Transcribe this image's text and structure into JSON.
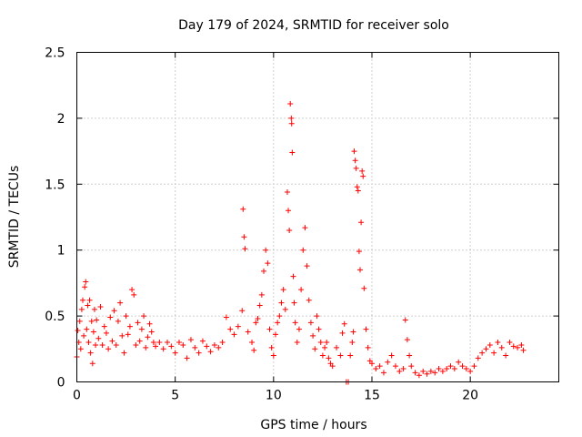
{
  "chart_data": {
    "type": "scatter",
    "title": "Day 179 of 2024, SRMTID for receiver solo",
    "xlabel": "GPS time / hours",
    "ylabel": "SRMTID / TECUs",
    "xlim": [
      0,
      24.5
    ],
    "ylim": [
      0,
      2.5
    ],
    "xticks": [
      0,
      5,
      10,
      15,
      20
    ],
    "xtick_labels": [
      "0",
      "5",
      "10",
      "15",
      "20"
    ],
    "yticks": [
      0,
      0.5,
      1,
      1.5,
      2,
      2.5
    ],
    "ytick_labels": [
      "0",
      "0.5",
      "1",
      "1.5",
      "2",
      "2.5"
    ],
    "grid": true,
    "marker": "+",
    "series": [
      {
        "name": "SRMTID",
        "color": "#ff0000",
        "points": [
          [
            0.0,
            0.19
          ],
          [
            0.05,
            0.39
          ],
          [
            0.1,
            0.3
          ],
          [
            0.15,
            0.46
          ],
          [
            0.2,
            0.25
          ],
          [
            0.25,
            0.55
          ],
          [
            0.3,
            0.62
          ],
          [
            0.35,
            0.35
          ],
          [
            0.4,
            0.72
          ],
          [
            0.45,
            0.76
          ],
          [
            0.5,
            0.4
          ],
          [
            0.55,
            0.58
          ],
          [
            0.6,
            0.3
          ],
          [
            0.65,
            0.62
          ],
          [
            0.7,
            0.22
          ],
          [
            0.75,
            0.46
          ],
          [
            0.8,
            0.14
          ],
          [
            0.85,
            0.38
          ],
          [
            0.9,
            0.55
          ],
          [
            0.95,
            0.28
          ],
          [
            1.0,
            0.47
          ],
          [
            1.1,
            0.33
          ],
          [
            1.2,
            0.57
          ],
          [
            1.3,
            0.28
          ],
          [
            1.4,
            0.42
          ],
          [
            1.5,
            0.37
          ],
          [
            1.6,
            0.25
          ],
          [
            1.7,
            0.49
          ],
          [
            1.8,
            0.31
          ],
          [
            1.9,
            0.54
          ],
          [
            2.0,
            0.28
          ],
          [
            2.1,
            0.46
          ],
          [
            2.2,
            0.6
          ],
          [
            2.3,
            0.35
          ],
          [
            2.4,
            0.22
          ],
          [
            2.5,
            0.5
          ],
          [
            2.6,
            0.36
          ],
          [
            2.7,
            0.42
          ],
          [
            2.8,
            0.7
          ],
          [
            2.9,
            0.66
          ],
          [
            3.0,
            0.28
          ],
          [
            3.1,
            0.45
          ],
          [
            3.2,
            0.31
          ],
          [
            3.3,
            0.4
          ],
          [
            3.4,
            0.5
          ],
          [
            3.5,
            0.26
          ],
          [
            3.6,
            0.34
          ],
          [
            3.7,
            0.44
          ],
          [
            3.8,
            0.38
          ],
          [
            3.9,
            0.3
          ],
          [
            4.0,
            0.27
          ],
          [
            4.2,
            0.3
          ],
          [
            4.4,
            0.25
          ],
          [
            4.6,
            0.3
          ],
          [
            4.8,
            0.27
          ],
          [
            5.0,
            0.22
          ],
          [
            5.2,
            0.3
          ],
          [
            5.4,
            0.28
          ],
          [
            5.6,
            0.18
          ],
          [
            5.8,
            0.32
          ],
          [
            6.0,
            0.26
          ],
          [
            6.2,
            0.22
          ],
          [
            6.4,
            0.31
          ],
          [
            6.6,
            0.27
          ],
          [
            6.8,
            0.23
          ],
          [
            7.0,
            0.28
          ],
          [
            7.2,
            0.26
          ],
          [
            7.4,
            0.3
          ],
          [
            7.6,
            0.49
          ],
          [
            7.8,
            0.4
          ],
          [
            8.0,
            0.36
          ],
          [
            8.2,
            0.42
          ],
          [
            8.4,
            0.54
          ],
          [
            8.45,
            1.31
          ],
          [
            8.5,
            1.1
          ],
          [
            8.55,
            1.01
          ],
          [
            8.7,
            0.38
          ],
          [
            8.9,
            0.3
          ],
          [
            9.0,
            0.24
          ],
          [
            9.1,
            0.45
          ],
          [
            9.2,
            0.48
          ],
          [
            9.3,
            0.58
          ],
          [
            9.4,
            0.66
          ],
          [
            9.5,
            0.84
          ],
          [
            9.6,
            1.0
          ],
          [
            9.7,
            0.9
          ],
          [
            9.8,
            0.4
          ],
          [
            9.9,
            0.26
          ],
          [
            10.0,
            0.2
          ],
          [
            10.1,
            0.36
          ],
          [
            10.2,
            0.45
          ],
          [
            10.3,
            0.5
          ],
          [
            10.4,
            0.6
          ],
          [
            10.5,
            0.7
          ],
          [
            10.6,
            0.55
          ],
          [
            10.7,
            1.44
          ],
          [
            10.75,
            1.3
          ],
          [
            10.8,
            1.15
          ],
          [
            10.85,
            2.11
          ],
          [
            10.9,
            2.0
          ],
          [
            10.92,
            1.96
          ],
          [
            10.95,
            1.74
          ],
          [
            11.0,
            0.8
          ],
          [
            11.05,
            0.6
          ],
          [
            11.1,
            0.45
          ],
          [
            11.2,
            0.3
          ],
          [
            11.3,
            0.4
          ],
          [
            11.4,
            0.7
          ],
          [
            11.5,
            1.0
          ],
          [
            11.6,
            1.17
          ],
          [
            11.7,
            0.88
          ],
          [
            11.8,
            0.62
          ],
          [
            11.9,
            0.45
          ],
          [
            12.0,
            0.35
          ],
          [
            12.1,
            0.25
          ],
          [
            12.2,
            0.5
          ],
          [
            12.3,
            0.4
          ],
          [
            12.4,
            0.3
          ],
          [
            12.5,
            0.2
          ],
          [
            12.6,
            0.26
          ],
          [
            12.7,
            0.3
          ],
          [
            12.8,
            0.18
          ],
          [
            12.9,
            0.14
          ],
          [
            13.0,
            0.12
          ],
          [
            13.2,
            0.26
          ],
          [
            13.4,
            0.2
          ],
          [
            13.5,
            0.37
          ],
          [
            13.6,
            0.44
          ],
          [
            13.7,
            0.0
          ],
          [
            13.8,
            0.0
          ],
          [
            13.9,
            0.2
          ],
          [
            14.0,
            0.3
          ],
          [
            14.05,
            0.38
          ],
          [
            14.1,
            1.75
          ],
          [
            14.15,
            1.68
          ],
          [
            14.2,
            1.62
          ],
          [
            14.25,
            1.48
          ],
          [
            14.3,
            1.45
          ],
          [
            14.35,
            0.99
          ],
          [
            14.4,
            0.85
          ],
          [
            14.45,
            1.21
          ],
          [
            14.5,
            1.6
          ],
          [
            14.55,
            1.56
          ],
          [
            14.6,
            0.71
          ],
          [
            14.7,
            0.4
          ],
          [
            14.8,
            0.26
          ],
          [
            14.9,
            0.16
          ],
          [
            15.0,
            0.14
          ],
          [
            15.2,
            0.1
          ],
          [
            15.4,
            0.12
          ],
          [
            15.6,
            0.07
          ],
          [
            15.8,
            0.15
          ],
          [
            16.0,
            0.2
          ],
          [
            16.2,
            0.12
          ],
          [
            16.4,
            0.08
          ],
          [
            16.6,
            0.1
          ],
          [
            16.7,
            0.47
          ],
          [
            16.8,
            0.32
          ],
          [
            16.9,
            0.2
          ],
          [
            17.0,
            0.12
          ],
          [
            17.2,
            0.07
          ],
          [
            17.4,
            0.05
          ],
          [
            17.6,
            0.08
          ],
          [
            17.8,
            0.06
          ],
          [
            18.0,
            0.08
          ],
          [
            18.2,
            0.07
          ],
          [
            18.4,
            0.1
          ],
          [
            18.6,
            0.08
          ],
          [
            18.8,
            0.1
          ],
          [
            19.0,
            0.12
          ],
          [
            19.2,
            0.1
          ],
          [
            19.4,
            0.15
          ],
          [
            19.6,
            0.12
          ],
          [
            19.8,
            0.1
          ],
          [
            20.0,
            0.08
          ],
          [
            20.2,
            0.12
          ],
          [
            20.4,
            0.18
          ],
          [
            20.6,
            0.22
          ],
          [
            20.8,
            0.25
          ],
          [
            21.0,
            0.28
          ],
          [
            21.2,
            0.22
          ],
          [
            21.4,
            0.3
          ],
          [
            21.6,
            0.26
          ],
          [
            21.8,
            0.2
          ],
          [
            22.0,
            0.3
          ],
          [
            22.2,
            0.27
          ],
          [
            22.4,
            0.26
          ],
          [
            22.6,
            0.28
          ],
          [
            22.7,
            0.24
          ]
        ]
      }
    ]
  }
}
